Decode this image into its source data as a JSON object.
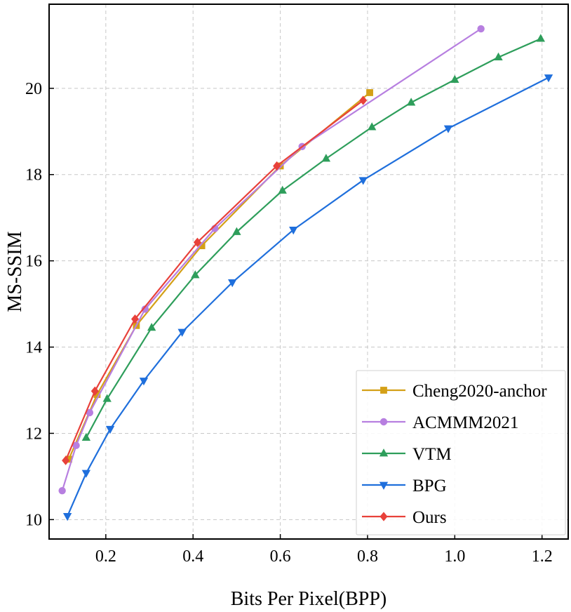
{
  "chart_data": {
    "type": "line",
    "title": "",
    "xlabel": "Bits Per Pixel(BPP)",
    "ylabel": "MS-SSIM",
    "xlim": [
      0.07,
      1.26
    ],
    "ylim": [
      9.55,
      21.95
    ],
    "xticks": [
      0.2,
      0.4,
      0.6,
      0.8,
      1.0,
      1.2
    ],
    "xtick_labels": [
      "0.2",
      "0.4",
      "0.6",
      "0.8",
      "1.0",
      "1.2"
    ],
    "yticks": [
      10,
      12,
      14,
      16,
      18,
      20
    ],
    "ytick_labels": [
      "10",
      "12",
      "14",
      "16",
      "18",
      "20"
    ],
    "grid": true,
    "legend_position": "bottom-right",
    "series": [
      {
        "name": "Cheng2020-anchor",
        "color": "#d4a017",
        "marker": "square",
        "x": [
          0.115,
          0.18,
          0.27,
          0.42,
          0.6,
          0.805
        ],
        "y": [
          11.4,
          12.9,
          14.5,
          16.35,
          18.2,
          19.9
        ]
      },
      {
        "name": "ACMMM2021",
        "color": "#b77fe0",
        "marker": "circle",
        "x": [
          0.1,
          0.132,
          0.163,
          0.29,
          0.45,
          0.65,
          1.06
        ],
        "y": [
          10.67,
          11.72,
          12.48,
          14.88,
          16.75,
          18.65,
          21.38
        ]
      },
      {
        "name": "VTM",
        "color": "#2e9e5b",
        "marker": "triangle-up",
        "x": [
          0.155,
          0.203,
          0.305,
          0.405,
          0.5,
          0.605,
          0.705,
          0.81,
          0.9,
          1.0,
          1.1,
          1.197
        ],
        "y": [
          11.9,
          12.8,
          14.45,
          15.67,
          16.67,
          17.63,
          18.37,
          19.1,
          19.67,
          20.2,
          20.72,
          21.15
        ]
      },
      {
        "name": "BPG",
        "color": "#1f6fdc",
        "marker": "triangle-down",
        "x": [
          0.112,
          0.155,
          0.21,
          0.287,
          0.375,
          0.49,
          0.63,
          0.79,
          0.985,
          1.215
        ],
        "y": [
          10.08,
          11.08,
          12.1,
          13.22,
          14.35,
          15.5,
          16.72,
          17.87,
          19.07,
          20.25
        ]
      },
      {
        "name": "Ours",
        "color": "#e8413a",
        "marker": "diamond",
        "x": [
          0.108,
          0.175,
          0.267,
          0.41,
          0.592,
          0.79
        ],
        "y": [
          11.37,
          12.98,
          14.65,
          16.43,
          18.2,
          19.72
        ]
      }
    ]
  }
}
